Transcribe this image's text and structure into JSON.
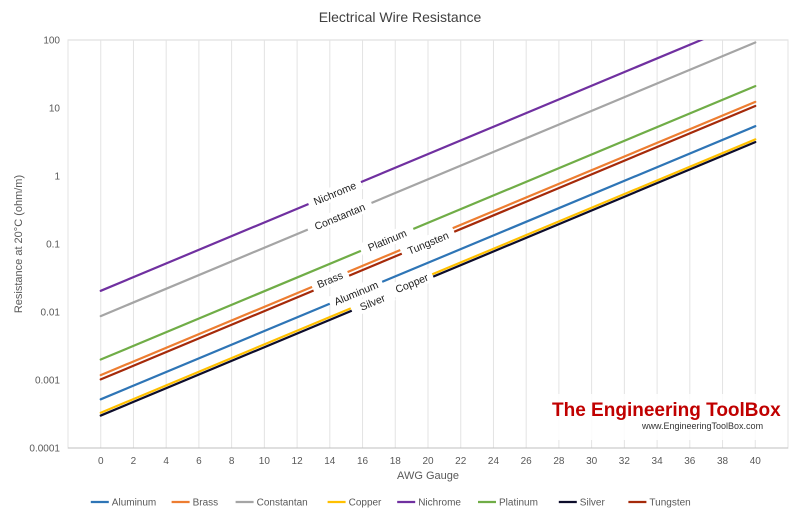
{
  "chart_data": {
    "type": "line",
    "title": "Electrical Wire Resistance",
    "xlabel": "AWG Gauge",
    "ylabel": "Resistance at 20°C (ohm/m)",
    "y_scale": "log",
    "ylim": [
      0.0001,
      100
    ],
    "xlim": [
      -2,
      42
    ],
    "x_ticks": [
      "0",
      "2",
      "4",
      "6",
      "8",
      "10",
      "12",
      "14",
      "16",
      "18",
      "20",
      "22",
      "24",
      "26",
      "28",
      "30",
      "32",
      "34",
      "36",
      "38",
      "40"
    ],
    "y_ticks": [
      "0.0001",
      "0.001",
      "0.01",
      "0.1",
      "1",
      "10",
      "100"
    ],
    "grid": "vertical",
    "legend_position": "bottom",
    "series": [
      {
        "name": "Aluminum",
        "color": "#2e75b6",
        "x": [
          0,
          40
        ],
        "y": [
          0.00052,
          5.4
        ]
      },
      {
        "name": "Brass",
        "color": "#ed7d31",
        "x": [
          0,
          40
        ],
        "y": [
          0.00118,
          12.3
        ]
      },
      {
        "name": "Constantan",
        "color": "#a5a5a5",
        "x": [
          0,
          40
        ],
        "y": [
          0.0087,
          92
        ]
      },
      {
        "name": "Copper",
        "color": "#ffc000",
        "x": [
          0,
          40
        ],
        "y": [
          0.00033,
          3.45
        ]
      },
      {
        "name": "Nichrome",
        "color": "#7030a0",
        "x": [
          0,
          40
        ],
        "y": [
          0.0205,
          215
        ]
      },
      {
        "name": "Platinum",
        "color": "#70ad47",
        "x": [
          0,
          40
        ],
        "y": [
          0.002,
          21
        ]
      },
      {
        "name": "Silver",
        "color": "#0d0d2b",
        "x": [
          0,
          40
        ],
        "y": [
          0.0003,
          3.15
        ]
      },
      {
        "name": "Tungsten",
        "color": "#a52a0a",
        "x": [
          0,
          40
        ],
        "y": [
          0.00102,
          10.7
        ]
      }
    ],
    "line_labels": [
      {
        "series": "Nichrome",
        "text": "Nichrome",
        "x": 14.3
      },
      {
        "series": "Constantan",
        "text": "Constantan",
        "x": 14.6
      },
      {
        "series": "Platinum",
        "text": "Platinum",
        "x": 17.5
      },
      {
        "series": "Brass",
        "text": "Brass",
        "x": 14.0
      },
      {
        "series": "Tungsten",
        "text": "Tungsten",
        "x": 20.0
      },
      {
        "series": "Aluminum",
        "text": "Aluminum",
        "x": 15.6
      },
      {
        "series": "Copper",
        "text": "Copper",
        "x": 19.0
      },
      {
        "series": "Silver",
        "text": "Silver",
        "x": 16.6
      }
    ]
  },
  "watermark": {
    "title": "The Engineering ToolBox",
    "url": "www.EngineeringToolBox.com"
  }
}
